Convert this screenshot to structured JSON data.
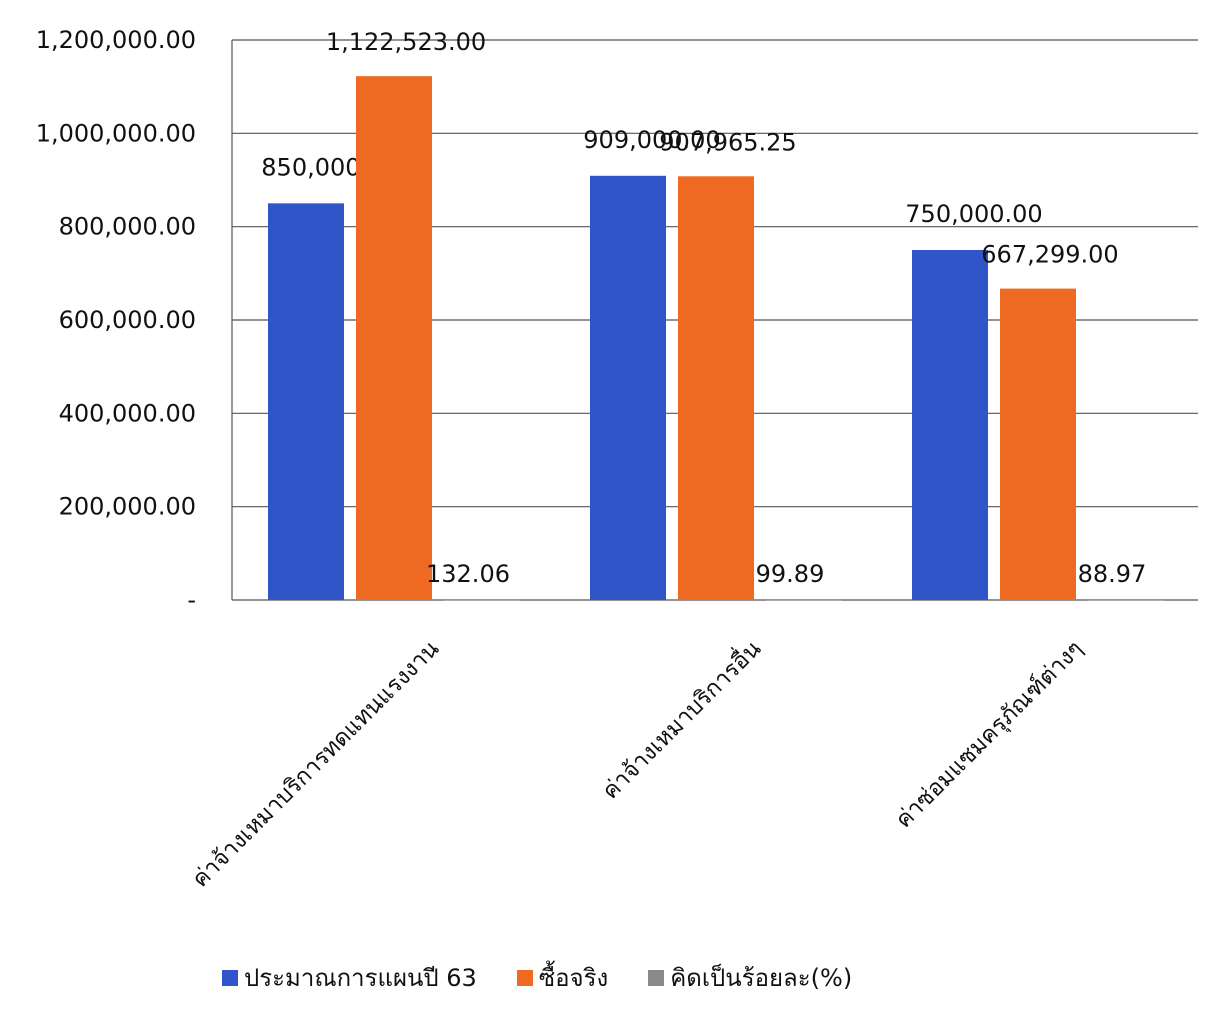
{
  "chart_data": {
    "type": "bar",
    "title": "",
    "xlabel": "",
    "ylabel": "",
    "ylim": [
      0,
      1200000
    ],
    "yticks": [
      0,
      200000,
      400000,
      600000,
      800000,
      1000000,
      1200000
    ],
    "ytick_labels": [
      "-",
      "200,000.00",
      "400,000.00",
      "600,000.00",
      "800,000.00",
      "1,000,000.00",
      "1,200,000.00"
    ],
    "grid": true,
    "legend_position": "bottom",
    "categories": [
      "ค่าจ้างเหมาบริการทดแทนแรงงาน",
      "ค่าจ้างเหมาบริการอื่น",
      "ค่าซ่อมแซมครุภัณฑ์ต่างๆ"
    ],
    "series": [
      {
        "name": "ประมาณการแผนปี 63",
        "color": "#2f55c8",
        "values": [
          850000,
          909000,
          750000
        ],
        "labels": [
          "850,000.00",
          "909,000.00",
          "750,000.00"
        ]
      },
      {
        "name": "ซื้อจริง",
        "color": "#ee6a22",
        "values": [
          1122523,
          907965.25,
          667299
        ],
        "labels": [
          "1,122,523.00",
          "907,965.25",
          "667,299.00"
        ]
      },
      {
        "name": "คิดเป็นร้อยละ(%)",
        "color": "#8a8a8a",
        "values": [
          132.06,
          99.89,
          88.97
        ],
        "labels": [
          "132.06",
          "99.89",
          "88.97"
        ]
      }
    ]
  }
}
